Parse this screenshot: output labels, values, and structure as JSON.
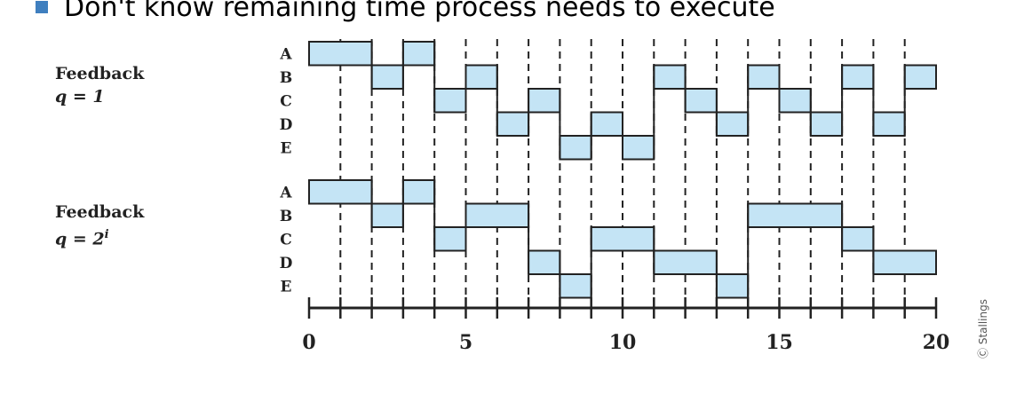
{
  "header": {
    "text": "Don't know remaining time process needs to execute"
  },
  "schedules": [
    {
      "title": "Feedback",
      "quantum_label": "q = 1",
      "processes": [
        "A",
        "B",
        "C",
        "D",
        "E"
      ],
      "segments": [
        {
          "p": "A",
          "start": 0,
          "end": 2
        },
        {
          "p": "B",
          "start": 2,
          "end": 3
        },
        {
          "p": "A",
          "start": 3,
          "end": 4
        },
        {
          "p": "C",
          "start": 4,
          "end": 5
        },
        {
          "p": "B",
          "start": 5,
          "end": 6
        },
        {
          "p": "D",
          "start": 6,
          "end": 7
        },
        {
          "p": "C",
          "start": 7,
          "end": 8
        },
        {
          "p": "E",
          "start": 8,
          "end": 9
        },
        {
          "p": "D",
          "start": 9,
          "end": 10
        },
        {
          "p": "E",
          "start": 10,
          "end": 11
        },
        {
          "p": "B",
          "start": 11,
          "end": 12
        },
        {
          "p": "C",
          "start": 12,
          "end": 13
        },
        {
          "p": "D",
          "start": 13,
          "end": 14
        },
        {
          "p": "B",
          "start": 14,
          "end": 15
        },
        {
          "p": "C",
          "start": 15,
          "end": 16
        },
        {
          "p": "D",
          "start": 16,
          "end": 17
        },
        {
          "p": "B",
          "start": 17,
          "end": 18
        },
        {
          "p": "D",
          "start": 18,
          "end": 19
        },
        {
          "p": "B",
          "start": 19,
          "end": 20
        }
      ]
    },
    {
      "title": "Feedback",
      "quantum_label": "q = 2",
      "quantum_exponent": "i",
      "processes": [
        "A",
        "B",
        "C",
        "D",
        "E"
      ],
      "segments": [
        {
          "p": "A",
          "start": 0,
          "end": 2
        },
        {
          "p": "B",
          "start": 2,
          "end": 3
        },
        {
          "p": "A",
          "start": 3,
          "end": 4
        },
        {
          "p": "C",
          "start": 4,
          "end": 5
        },
        {
          "p": "B",
          "start": 5,
          "end": 7
        },
        {
          "p": "D",
          "start": 7,
          "end": 8
        },
        {
          "p": "E",
          "start": 8,
          "end": 9
        },
        {
          "p": "C",
          "start": 9,
          "end": 11
        },
        {
          "p": "D",
          "start": 11,
          "end": 13
        },
        {
          "p": "E",
          "start": 13,
          "end": 14
        },
        {
          "p": "B",
          "start": 14,
          "end": 17
        },
        {
          "p": "C",
          "start": 17,
          "end": 18
        },
        {
          "p": "D",
          "start": 18,
          "end": 20
        }
      ]
    }
  ],
  "axis": {
    "min": 0,
    "max": 20,
    "major_ticks": [
      0,
      5,
      10,
      15,
      20
    ]
  },
  "colors": {
    "bar_fill": "#c4e4f5",
    "line": "#222222",
    "bullet": "#3f7fbf"
  },
  "credit": "Ⓒ Stallings"
}
